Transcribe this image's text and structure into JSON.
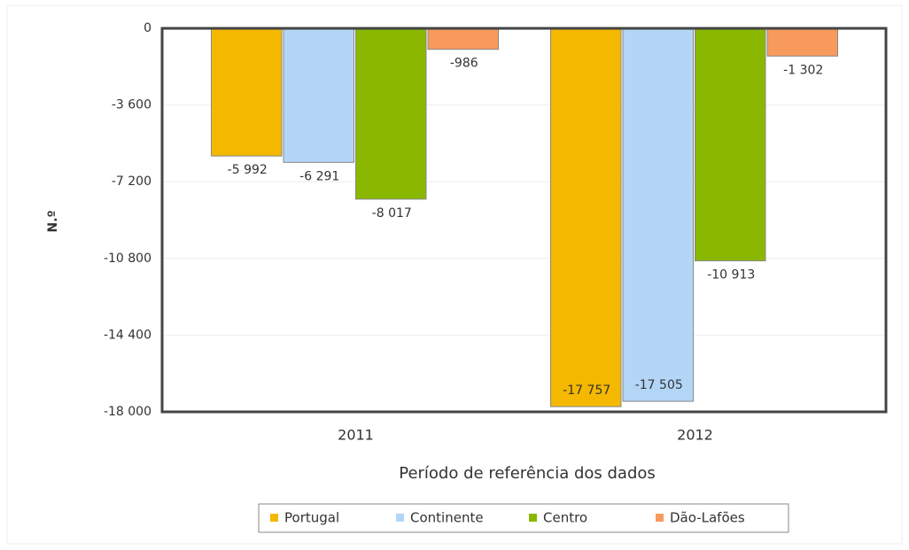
{
  "chart_data": {
    "type": "bar",
    "x_label": "Período de referência dos dados",
    "y_label": "N.º",
    "categories": [
      "2011",
      "2012"
    ],
    "series": [
      {
        "name": "Portugal",
        "color": "#f5b800",
        "values": [
          -5992,
          -17757
        ],
        "value_labels": [
          "-5 992",
          "-17 757"
        ]
      },
      {
        "name": "Continente",
        "color": "#b3d6f7",
        "values": [
          -6291,
          -17505
        ],
        "value_labels": [
          "-6 291",
          "-17 505"
        ]
      },
      {
        "name": "Centro",
        "color": "#8ab800",
        "values": [
          -8017,
          -10913
        ],
        "value_labels": [
          "-8 017",
          "-10 913"
        ]
      },
      {
        "name": "Dão-Lafões",
        "color": "#f79a5c",
        "values": [
          -986,
          -1302
        ],
        "value_labels": [
          "-986",
          "-1 302"
        ]
      }
    ],
    "ylim": [
      -18000,
      0
    ],
    "yticks": [
      {
        "value": -18000,
        "label": "-18 000"
      },
      {
        "value": -14400,
        "label": "-14 400"
      },
      {
        "value": -10800,
        "label": "-10 800"
      },
      {
        "value": -7200,
        "label": "-7 200"
      },
      {
        "value": -3600,
        "label": "-3 600"
      },
      0
    ],
    "grid": true
  }
}
